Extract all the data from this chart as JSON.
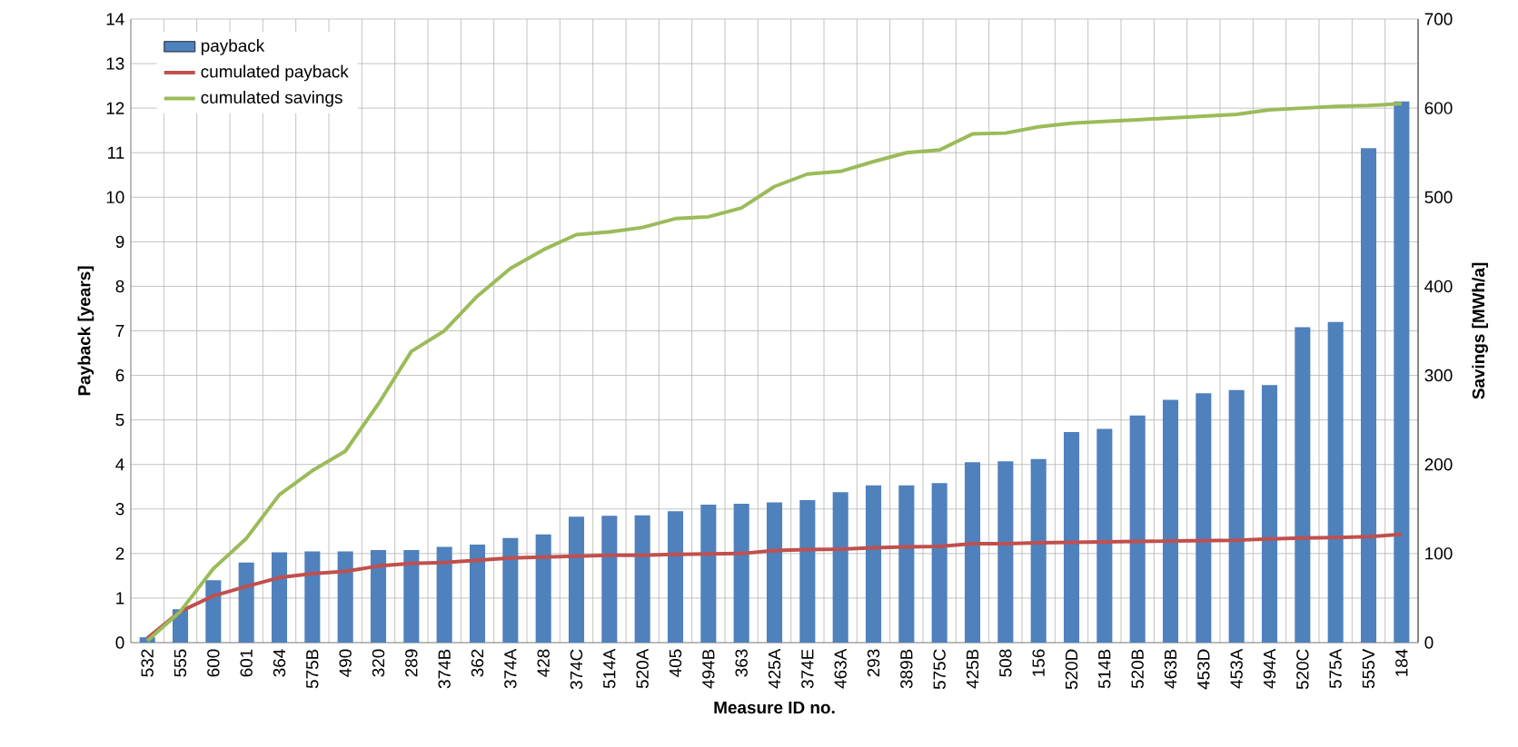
{
  "chart_data": {
    "type": "bar",
    "categories": [
      "532",
      "555",
      "600",
      "601",
      "364",
      "575B",
      "490",
      "320",
      "289",
      "374B",
      "362",
      "374A",
      "428",
      "374C",
      "514A",
      "520A",
      "405",
      "494B",
      "363",
      "425A",
      "374E",
      "463A",
      "293",
      "389B",
      "575C",
      "425B",
      "508",
      "156",
      "520D",
      "514B",
      "520B",
      "463B",
      "453D",
      "453A",
      "494A",
      "520C",
      "575A",
      "555V",
      "184"
    ],
    "series": [
      {
        "name": "payback",
        "color": "#4f81bd",
        "values": [
          0.12,
          0.75,
          1.4,
          1.8,
          2.03,
          2.05,
          2.05,
          2.08,
          2.08,
          2.15,
          2.2,
          2.35,
          2.43,
          2.83,
          2.85,
          2.86,
          2.95,
          3.1,
          3.12,
          3.15,
          3.2,
          3.38,
          3.53,
          3.53,
          3.58,
          4.05,
          4.07,
          4.12,
          4.73,
          4.8,
          5.1,
          5.45,
          5.6,
          5.67,
          5.78,
          7.08,
          7.2,
          11.1,
          12.15
        ]
      },
      {
        "name": "cumulated payback",
        "type": "line",
        "color": "#c0504d",
        "values": [
          0.1,
          0.7,
          1.05,
          1.26,
          1.46,
          1.55,
          1.6,
          1.72,
          1.78,
          1.8,
          1.85,
          1.9,
          1.92,
          1.94,
          1.96,
          1.96,
          1.98,
          1.99,
          2.0,
          2.07,
          2.09,
          2.1,
          2.13,
          2.15,
          2.16,
          2.22,
          2.22,
          2.24,
          2.25,
          2.26,
          2.27,
          2.28,
          2.29,
          2.3,
          2.33,
          2.35,
          2.36,
          2.38,
          2.43
        ]
      },
      {
        "name": "cumulated savings",
        "type": "line",
        "axis": "y2",
        "color": "#9bbb59",
        "values": [
          2,
          35,
          83,
          117,
          166,
          193,
          215,
          268,
          327,
          350,
          389,
          420,
          441,
          458,
          461,
          466,
          476,
          478,
          488,
          512,
          526,
          529,
          540,
          550,
          553,
          571,
          572,
          579,
          583,
          585,
          587,
          589,
          591,
          593,
          598,
          600,
          602,
          603,
          605
        ]
      }
    ],
    "xlabel": "Measure ID no.",
    "ylabel": "Payback [years]",
    "y2label": "Savings [MWh/a]",
    "ylim": [
      0,
      14
    ],
    "yticks": [
      0,
      1,
      2,
      3,
      4,
      5,
      6,
      7,
      8,
      9,
      10,
      11,
      12,
      13,
      14
    ],
    "y2lim": [
      0,
      700
    ],
    "y2ticks": [
      0,
      100,
      200,
      300,
      400,
      500,
      600,
      700
    ],
    "grid": true,
    "legend": "top left"
  }
}
